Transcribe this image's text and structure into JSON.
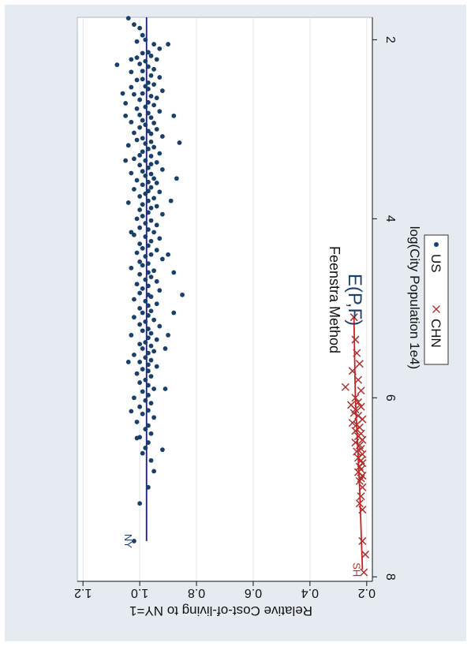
{
  "chart_data": {
    "type": "scatter",
    "orientation": "rotated 90 degrees clockwise (x axis runs top to bottom on right edge, y axis on left edge read upside down)",
    "title": "E(P,F)",
    "subtitle": "Feenstra Method",
    "xlabel": "log(City Population 1e4)",
    "ylabel": "Relative Cost-of-living to NY=1",
    "xlim": [
      1.75,
      8.05
    ],
    "ylim": [
      0.18,
      1.22
    ],
    "xticks": [
      "2",
      "4",
      "6",
      "8"
    ],
    "yticks": [
      "0.2",
      "0.4",
      "0.6",
      "0.8",
      "1.0",
      "1.2"
    ],
    "grid": true,
    "legend_position": "bottom",
    "annotations": [
      {
        "text": "NY",
        "x": 7.6,
        "y": 1.02,
        "color": "#1a3f6b"
      },
      {
        "text": "SH",
        "x": 7.92,
        "y": 0.215,
        "color": "#b03030"
      }
    ],
    "series": [
      {
        "name": "US",
        "marker": "dot",
        "color": "#1a3f6b",
        "fit_line": {
          "x": [
            1.75,
            7.6
          ],
          "y": [
            0.976,
            0.976
          ],
          "color": "#1515c0"
        },
        "points": [
          [
            1.76,
            1.04
          ],
          [
            1.83,
            1.02
          ],
          [
            1.87,
            1.0
          ],
          [
            1.95,
            0.99
          ],
          [
            2.0,
            0.98
          ],
          [
            2.02,
            1.01
          ],
          [
            2.05,
            0.95
          ],
          [
            2.1,
            0.93
          ],
          [
            2.14,
            0.97
          ],
          [
            2.15,
            0.99
          ],
          [
            2.18,
            0.96
          ],
          [
            2.2,
            1.01
          ],
          [
            2.22,
            0.94
          ],
          [
            2.24,
            0.98
          ],
          [
            2.27,
            1.0
          ],
          [
            2.28,
            1.08
          ],
          [
            2.3,
            0.97
          ],
          [
            2.33,
            0.95
          ],
          [
            2.35,
            0.99
          ],
          [
            2.36,
            1.03
          ],
          [
            2.4,
            0.96
          ],
          [
            2.42,
            0.93
          ],
          [
            2.44,
            0.99
          ],
          [
            2.45,
            1.01
          ],
          [
            2.48,
            0.97
          ],
          [
            2.5,
            0.95
          ],
          [
            2.52,
            0.98
          ],
          [
            2.53,
            1.03
          ],
          [
            2.55,
            0.97
          ],
          [
            2.57,
            0.92
          ],
          [
            2.6,
            0.99
          ],
          [
            2.61,
            1.02
          ],
          [
            2.63,
            0.96
          ],
          [
            2.65,
            0.94
          ],
          [
            2.67,
            1.0
          ],
          [
            2.7,
            0.97
          ],
          [
            2.71,
            1.05
          ],
          [
            2.73,
            0.95
          ],
          [
            2.75,
            0.98
          ],
          [
            2.77,
            1.01
          ],
          [
            2.8,
            0.93
          ],
          [
            2.82,
            0.97
          ],
          [
            2.84,
            1.0
          ],
          [
            2.85,
            0.88
          ],
          [
            2.87,
            0.96
          ],
          [
            2.9,
            0.99
          ],
          [
            2.92,
            1.03
          ],
          [
            2.93,
            0.95
          ],
          [
            2.95,
            0.98
          ],
          [
            2.98,
            1.0
          ],
          [
            3.0,
            0.94
          ],
          [
            3.02,
            0.97
          ],
          [
            3.04,
            1.02
          ],
          [
            3.05,
            0.96
          ],
          [
            3.08,
            0.92
          ],
          [
            3.1,
            0.99
          ],
          [
            3.12,
            1.01
          ],
          [
            3.14,
            0.96
          ],
          [
            3.16,
            0.98
          ],
          [
            3.18,
            1.04
          ],
          [
            3.2,
            0.95
          ],
          [
            3.22,
            0.97
          ],
          [
            3.25,
            0.99
          ],
          [
            3.27,
            0.93
          ],
          [
            3.29,
            1.0
          ],
          [
            3.3,
            0.96
          ],
          [
            3.33,
            1.02
          ],
          [
            3.35,
            0.98
          ],
          [
            3.37,
            0.94
          ],
          [
            3.39,
            0.96
          ],
          [
            3.4,
            1.0
          ],
          [
            3.43,
            0.97
          ],
          [
            3.45,
            0.92
          ],
          [
            3.47,
            0.99
          ],
          [
            3.49,
            1.03
          ],
          [
            3.5,
            0.96
          ],
          [
            3.52,
            0.98
          ],
          [
            3.55,
            0.95
          ],
          [
            3.57,
            1.01
          ],
          [
            3.59,
            0.97
          ],
          [
            3.6,
            0.94
          ],
          [
            3.62,
            0.99
          ],
          [
            3.65,
            0.96
          ],
          [
            3.67,
            1.02
          ],
          [
            3.69,
            0.97
          ],
          [
            3.7,
            0.93
          ],
          [
            3.72,
            0.98
          ],
          [
            3.75,
            1.0
          ],
          [
            3.77,
            0.95
          ],
          [
            3.8,
            0.97
          ],
          [
            3.82,
            1.04
          ],
          [
            3.84,
            0.99
          ],
          [
            3.86,
            0.94
          ],
          [
            3.88,
            0.96
          ],
          [
            3.9,
            1.0
          ],
          [
            3.93,
            0.97
          ],
          [
            3.95,
            0.92
          ],
          [
            3.97,
            0.99
          ],
          [
            4.0,
            1.01
          ],
          [
            4.02,
            0.96
          ],
          [
            4.05,
            0.98
          ],
          [
            4.07,
            0.94
          ],
          [
            4.1,
            1.0
          ],
          [
            4.12,
            0.97
          ],
          [
            4.15,
            0.95
          ],
          [
            4.18,
            1.02
          ],
          [
            4.2,
            0.98
          ],
          [
            4.22,
            0.93
          ],
          [
            4.25,
            0.96
          ],
          [
            4.28,
            1.0
          ],
          [
            4.3,
            0.97
          ],
          [
            4.33,
            0.99
          ],
          [
            4.35,
            0.94
          ],
          [
            4.38,
            1.01
          ],
          [
            4.4,
            0.96
          ],
          [
            4.42,
            0.98
          ],
          [
            4.45,
            0.92
          ],
          [
            4.48,
            1.0
          ],
          [
            4.5,
            0.97
          ],
          [
            4.52,
            0.99
          ],
          [
            4.55,
            1.03
          ],
          [
            4.58,
            0.95
          ],
          [
            4.6,
            0.97
          ],
          [
            4.62,
            1.0
          ],
          [
            4.65,
            0.96
          ],
          [
            4.68,
            0.98
          ],
          [
            4.7,
            0.94
          ],
          [
            4.73,
            1.01
          ],
          [
            4.75,
            0.97
          ],
          [
            4.78,
            0.99
          ],
          [
            4.8,
            0.93
          ],
          [
            4.83,
            1.0
          ],
          [
            4.85,
            0.97
          ],
          [
            4.87,
            0.96
          ],
          [
            4.9,
            1.02
          ],
          [
            4.92,
            0.98
          ],
          [
            4.95,
            0.94
          ],
          [
            4.97,
            0.97
          ],
          [
            5.0,
            1.0
          ],
          [
            5.03,
            0.96
          ],
          [
            5.05,
            0.99
          ],
          [
            5.08,
            0.97
          ],
          [
            5.1,
            1.02
          ],
          [
            5.13,
            0.95
          ],
          [
            5.15,
            0.98
          ],
          [
            5.18,
            1.0
          ],
          [
            5.2,
            0.93
          ],
          [
            5.23,
            0.97
          ],
          [
            5.25,
            0.99
          ],
          [
            5.28,
            0.96
          ],
          [
            5.3,
            1.03
          ],
          [
            5.33,
            0.97
          ],
          [
            5.35,
            0.94
          ],
          [
            5.38,
            0.98
          ],
          [
            5.4,
            1.0
          ],
          [
            5.42,
            0.96
          ],
          [
            5.45,
            0.99
          ],
          [
            5.48,
            0.95
          ],
          [
            5.5,
            0.97
          ],
          [
            5.52,
            1.02
          ],
          [
            5.55,
            0.98
          ],
          [
            5.58,
            0.96
          ],
          [
            5.6,
            1.0
          ],
          [
            5.63,
            0.97
          ],
          [
            5.65,
            0.94
          ],
          [
            5.68,
            0.99
          ],
          [
            5.7,
            0.97
          ],
          [
            5.73,
            1.01
          ],
          [
            5.76,
            0.96
          ],
          [
            5.8,
            0.98
          ],
          [
            5.83,
            1.0
          ],
          [
            5.86,
            0.97
          ],
          [
            5.9,
            0.95
          ],
          [
            5.93,
            0.99
          ],
          [
            5.97,
            0.97
          ],
          [
            6.0,
            1.02
          ],
          [
            6.03,
            0.98
          ],
          [
            6.06,
            0.96
          ],
          [
            6.1,
            1.0
          ],
          [
            6.14,
            0.97
          ],
          [
            6.18,
            0.99
          ],
          [
            6.22,
            0.95
          ],
          [
            6.27,
            1.01
          ],
          [
            6.31,
            0.97
          ],
          [
            6.35,
            0.98
          ],
          [
            6.4,
            0.96
          ],
          [
            6.44,
            1.0
          ],
          [
            6.5,
            0.97
          ],
          [
            6.56,
            0.98
          ],
          [
            6.62,
            0.99
          ],
          [
            6.7,
            0.96
          ],
          [
            6.82,
            0.95
          ],
          [
            7.0,
            0.97
          ],
          [
            7.18,
            1.0
          ],
          [
            7.6,
            1.02
          ],
          [
            2.05,
            0.9
          ],
          [
            2.22,
            1.03
          ],
          [
            2.6,
            1.06
          ],
          [
            2.85,
            1.05
          ],
          [
            3.15,
            0.86
          ],
          [
            3.35,
            1.05
          ],
          [
            3.55,
            0.87
          ],
          [
            3.8,
            0.89
          ],
          [
            4.15,
            1.03
          ],
          [
            4.4,
            0.9
          ],
          [
            4.6,
            0.88
          ],
          [
            4.85,
            0.85
          ],
          [
            5.05,
            0.88
          ],
          [
            5.3,
            0.9
          ],
          [
            5.45,
            0.91
          ],
          [
            5.6,
            1.04
          ],
          [
            5.9,
            0.91
          ],
          [
            6.15,
            1.03
          ],
          [
            6.45,
            1.01
          ],
          [
            6.58,
            0.92
          ]
        ]
      },
      {
        "name": "CHN",
        "marker": "x",
        "color": "#b03030",
        "fit_line": {
          "x": [
            5.1,
            6.0,
            7.0,
            7.92
          ],
          "y": [
            0.245,
            0.24,
            0.225,
            0.215
          ],
          "color": "#d02020"
        },
        "points": [
          [
            5.1,
            0.245
          ],
          [
            5.35,
            0.24
          ],
          [
            5.5,
            0.235
          ],
          [
            5.62,
            0.225
          ],
          [
            5.7,
            0.25
          ],
          [
            5.8,
            0.23
          ],
          [
            5.88,
            0.275
          ],
          [
            5.92,
            0.22
          ],
          [
            6.0,
            0.24
          ],
          [
            6.05,
            0.23
          ],
          [
            6.08,
            0.255
          ],
          [
            6.1,
            0.22
          ],
          [
            6.13,
            0.24
          ],
          [
            6.17,
            0.245
          ],
          [
            6.2,
            0.23
          ],
          [
            6.24,
            0.215
          ],
          [
            6.28,
            0.25
          ],
          [
            6.3,
            0.235
          ],
          [
            6.33,
            0.225
          ],
          [
            6.37,
            0.24
          ],
          [
            6.4,
            0.22
          ],
          [
            6.43,
            0.23
          ],
          [
            6.47,
            0.215
          ],
          [
            6.5,
            0.24
          ],
          [
            6.53,
            0.225
          ],
          [
            6.57,
            0.22
          ],
          [
            6.6,
            0.235
          ],
          [
            6.63,
            0.215
          ],
          [
            6.67,
            0.23
          ],
          [
            6.7,
            0.22
          ],
          [
            6.73,
            0.215
          ],
          [
            6.77,
            0.225
          ],
          [
            6.8,
            0.22
          ],
          [
            6.83,
            0.23
          ],
          [
            6.87,
            0.215
          ],
          [
            6.9,
            0.22
          ],
          [
            6.93,
            0.225
          ],
          [
            7.0,
            0.215
          ],
          [
            7.1,
            0.22
          ],
          [
            7.18,
            0.225
          ],
          [
            7.25,
            0.215
          ],
          [
            7.6,
            0.215
          ],
          [
            7.75,
            0.205
          ],
          [
            7.95,
            0.21
          ]
        ]
      }
    ]
  }
}
